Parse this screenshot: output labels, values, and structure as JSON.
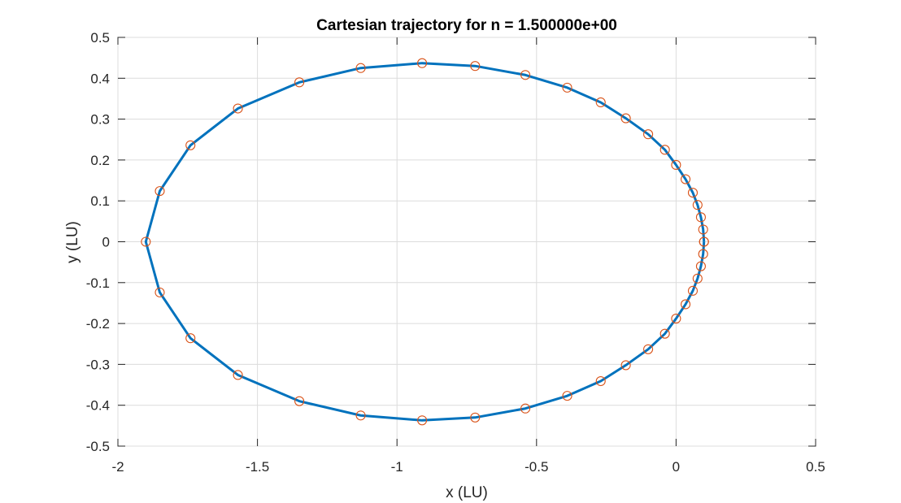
{
  "chart_data": {
    "type": "line",
    "title": "Cartesian trajectory for n = 1.500000e+00",
    "xlabel": "x (LU)",
    "ylabel": "y (LU)",
    "xlim": [
      -2,
      0.5
    ],
    "ylim": [
      -0.5,
      0.5
    ],
    "xticks": [
      -2,
      -1.5,
      -1,
      -0.5,
      0,
      0.5
    ],
    "xtick_labels": [
      "-2",
      "-1.5",
      "-1",
      "-0.5",
      "0",
      "0.5"
    ],
    "yticks": [
      -0.5,
      -0.4,
      -0.3,
      -0.2,
      -0.1,
      0,
      0.1,
      0.2,
      0.3,
      0.4,
      0.5
    ],
    "ytick_labels": [
      "-0.5",
      "-0.4",
      "-0.3",
      "-0.2",
      "-0.1",
      "0",
      "0.1",
      "0.2",
      "0.3",
      "0.4",
      "0.5"
    ],
    "grid": true,
    "series": [
      {
        "line_color": "#0072bd",
        "marker": "circle",
        "marker_color": "#d95319",
        "x": [
          0.1,
          0.097,
          0.089,
          0.077,
          0.06,
          0.034,
          0.0,
          -0.04,
          -0.1,
          -0.18,
          -0.27,
          -0.39,
          -0.54,
          -0.72,
          -0.91,
          -1.13,
          -1.35,
          -1.57,
          -1.74,
          -1.85,
          -1.9,
          -1.85,
          -1.74,
          -1.57,
          -1.35,
          -1.13,
          -0.91,
          -0.72,
          -0.54,
          -0.39,
          -0.27,
          -0.18,
          -0.1,
          -0.04,
          0.0,
          0.034,
          0.06,
          0.077,
          0.089,
          0.097,
          0.1
        ],
        "y": [
          0.0,
          0.03,
          0.06,
          0.09,
          0.12,
          0.153,
          0.188,
          0.225,
          0.263,
          0.302,
          0.341,
          0.377,
          0.408,
          0.43,
          0.437,
          0.425,
          0.39,
          0.326,
          0.236,
          0.124,
          0.0,
          -0.124,
          -0.236,
          -0.326,
          -0.39,
          -0.425,
          -0.437,
          -0.43,
          -0.408,
          -0.377,
          -0.341,
          -0.302,
          -0.263,
          -0.225,
          -0.188,
          -0.153,
          -0.12,
          -0.09,
          -0.06,
          -0.03,
          0.0
        ]
      }
    ]
  }
}
